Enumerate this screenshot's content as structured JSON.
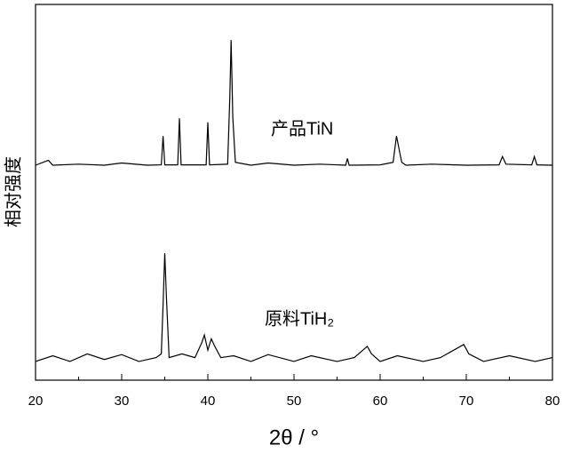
{
  "chart_data": {
    "type": "line",
    "xlabel": "2θ / °",
    "ylabel": "相对强度",
    "xlim": [
      20,
      80
    ],
    "xticks": [
      20,
      30,
      40,
      50,
      60,
      70,
      80
    ],
    "ylim": [
      0,
      100
    ],
    "series": [
      {
        "name": "产品TiN",
        "color": "#000000",
        "x": [
          20,
          21.5,
          22,
          25,
          28,
          30,
          33,
          34.6,
          34.8,
          35,
          36.5,
          36.7,
          36.9,
          39.8,
          40,
          40.2,
          42.3,
          42.55,
          42.7,
          42.9,
          43.2,
          45,
          47,
          50,
          53,
          56,
          56.2,
          56.4,
          60,
          61.5,
          61.9,
          62.5,
          63,
          66,
          70,
          73.8,
          74.2,
          74.6,
          77.6,
          77.9,
          78.2,
          80
        ],
        "values": [
          57.2,
          58.5,
          57.2,
          57.5,
          57.2,
          57.8,
          57.2,
          57.3,
          65,
          57.3,
          57.3,
          69.7,
          57.3,
          57.3,
          68.6,
          57.3,
          57.5,
          75,
          90.5,
          70,
          58,
          57.2,
          57.8,
          57.2,
          57.5,
          57.2,
          59,
          57.2,
          57.3,
          58,
          65,
          58,
          57.2,
          57.5,
          57.2,
          57.3,
          59.5,
          57.5,
          57.3,
          59.5,
          57.3,
          57.2
        ]
      },
      {
        "name": "原料TiH₂",
        "color": "#000000",
        "x": [
          20,
          22,
          24,
          26,
          28,
          30,
          32,
          34,
          34.6,
          34.8,
          35,
          35.2,
          35.5,
          37,
          38.5,
          39.3,
          39.6,
          40,
          40.4,
          40.8,
          41.5,
          43,
          45,
          47,
          50,
          52,
          55,
          57,
          58.5,
          59,
          60,
          62,
          65,
          67,
          69.7,
          70.3,
          72,
          75,
          78,
          80
        ],
        "values": [
          5,
          6.5,
          5,
          7,
          5.5,
          6.8,
          5,
          6,
          7,
          20,
          33.8,
          22,
          6,
          7,
          6,
          10,
          12,
          8,
          11,
          9,
          6,
          6.5,
          5,
          6.8,
          5,
          6.5,
          5,
          6,
          9,
          7,
          5,
          6.5,
          5,
          6,
          9.5,
          7,
          5,
          6.5,
          5,
          6
        ]
      }
    ]
  }
}
